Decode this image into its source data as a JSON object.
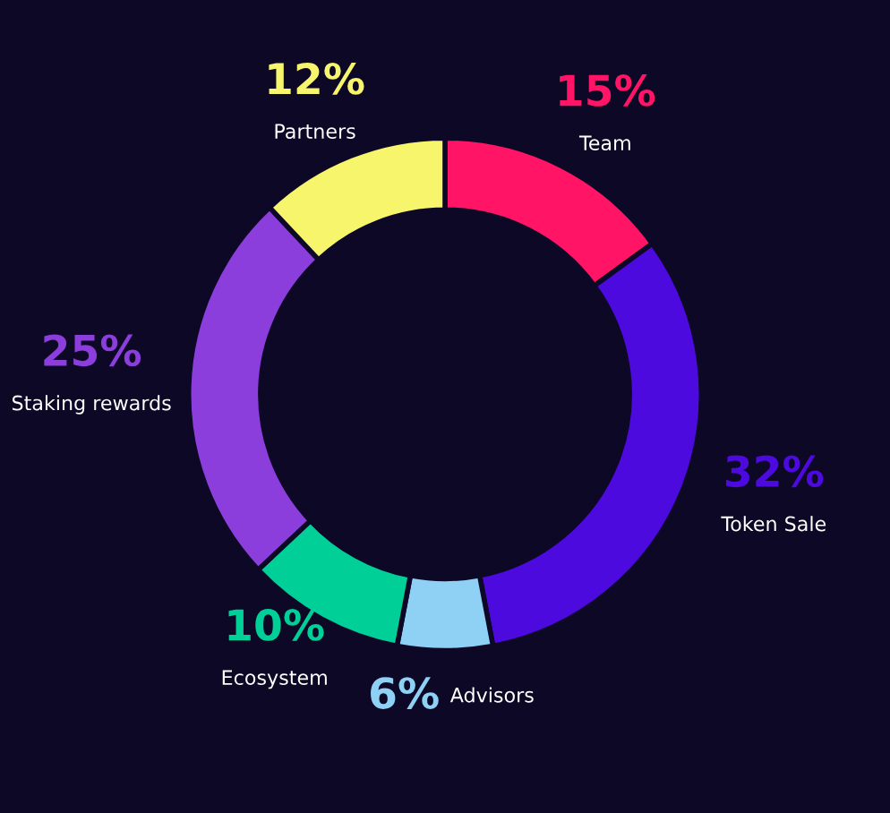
{
  "chart_data": {
    "type": "donut",
    "categories": [
      "Team",
      "Token Sale",
      "Advisors",
      "Ecosystem",
      "Staking rewards",
      "Partners"
    ],
    "values": [
      15,
      32,
      6,
      10,
      25,
      12
    ],
    "value_labels": [
      "15%",
      "32%",
      "6%",
      "10%",
      "25%",
      "12%"
    ],
    "colors": [
      "#ff1466",
      "#4c0adf",
      "#8fd0f5",
      "#00cf98",
      "#8c3edc",
      "#f6f56c"
    ],
    "legend": false
  }
}
